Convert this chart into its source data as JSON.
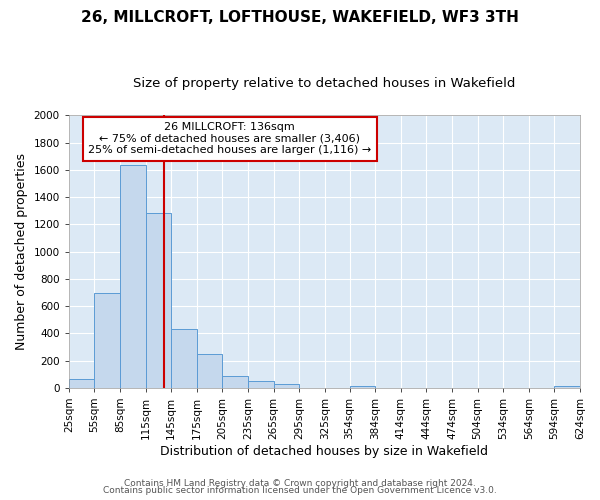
{
  "title": "26, MILLCROFT, LOFTHOUSE, WAKEFIELD, WF3 3TH",
  "subtitle": "Size of property relative to detached houses in Wakefield",
  "xlabel": "Distribution of detached houses by size in Wakefield",
  "ylabel": "Number of detached properties",
  "bin_edges": [
    25,
    55,
    85,
    115,
    145,
    175,
    205,
    235,
    265,
    295,
    325,
    354,
    384,
    414,
    444,
    474,
    504,
    534,
    564,
    594,
    624
  ],
  "bar_heights": [
    65,
    695,
    1635,
    1285,
    435,
    250,
    90,
    50,
    25,
    0,
    0,
    15,
    0,
    0,
    0,
    0,
    0,
    0,
    0,
    10
  ],
  "bar_color": "#c5d8ed",
  "bar_edge_color": "#5b9bd5",
  "tick_labels": [
    "25sqm",
    "55sqm",
    "85sqm",
    "115sqm",
    "145sqm",
    "175sqm",
    "205sqm",
    "235sqm",
    "265sqm",
    "295sqm",
    "325sqm",
    "354sqm",
    "384sqm",
    "414sqm",
    "444sqm",
    "474sqm",
    "504sqm",
    "534sqm",
    "564sqm",
    "594sqm",
    "624sqm"
  ],
  "vline_x": 136,
  "vline_color": "#cc0000",
  "ylim": [
    0,
    2000
  ],
  "yticks": [
    0,
    200,
    400,
    600,
    800,
    1000,
    1200,
    1400,
    1600,
    1800,
    2000
  ],
  "annotation_title": "26 MILLCROFT: 136sqm",
  "annotation_line1": "← 75% of detached houses are smaller (3,406)",
  "annotation_line2": "25% of semi-detached houses are larger (1,116) →",
  "annotation_box_facecolor": "#ffffff",
  "annotation_box_edgecolor": "#cc0000",
  "footer_line1": "Contains HM Land Registry data © Crown copyright and database right 2024.",
  "footer_line2": "Contains public sector information licensed under the Open Government Licence v3.0.",
  "fig_bg_color": "#ffffff",
  "plot_bg_color": "#dce9f5",
  "grid_color": "#ffffff",
  "title_fontsize": 11,
  "subtitle_fontsize": 9.5,
  "axis_label_fontsize": 9,
  "tick_fontsize": 7.5,
  "footer_fontsize": 6.5
}
